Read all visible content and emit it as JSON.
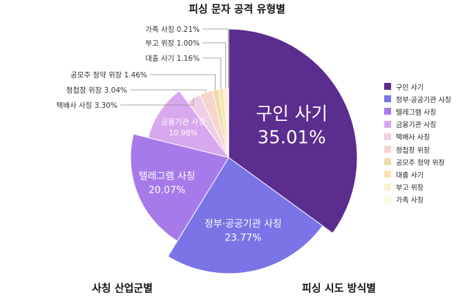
{
  "chart_data": {
    "type": "pie",
    "title": "피싱 문자 공격 유형별",
    "legend_position": "right",
    "slices": [
      {
        "name": "구인 사기",
        "value": 35.01,
        "label": "구인 사기",
        "value_text": "35.01%",
        "color": "#5b2d8e"
      },
      {
        "name": "정부·공공기관 사칭",
        "value": 23.77,
        "label": "정부·공공기관 사칭",
        "value_text": "23.77%",
        "color": "#7b74e6"
      },
      {
        "name": "텔레그램 사칭",
        "value": 20.07,
        "label": "텔레그램 사칭",
        "value_text": "20.07%",
        "color": "#a77ae9"
      },
      {
        "name": "금융기관 사칭",
        "value": 10.98,
        "label": "금융기관 사칭",
        "value_text": "10.98%",
        "color": "#d8a8ee"
      },
      {
        "name": "택배사 사칭",
        "value": 3.3,
        "label": "택배사 사칭 3.30%",
        "color": "#efcfe6"
      },
      {
        "name": "청첩장 위장",
        "value": 3.04,
        "label": "청첩장 위장 3.04%",
        "color": "#f7d5cd"
      },
      {
        "name": "공모주 청약 위장",
        "value": 1.46,
        "label": "공모주 청약 위장 1.46%",
        "color": "#eddca8"
      },
      {
        "name": "대출 사기",
        "value": 1.16,
        "label": "대출 사기 1.16%",
        "color": "#f6e3ae"
      },
      {
        "name": "부고 위장",
        "value": 1.0,
        "label": "부고 위장 1.00%",
        "color": "#fbf0d0"
      },
      {
        "name": "가족 사칭",
        "value": 0.21,
        "label": "가족 사칭 0.21%",
        "color": "#fdf7e8"
      }
    ]
  },
  "tabs": {
    "industry": "사칭 산업군별",
    "method": "피싱 시도 방식별"
  }
}
